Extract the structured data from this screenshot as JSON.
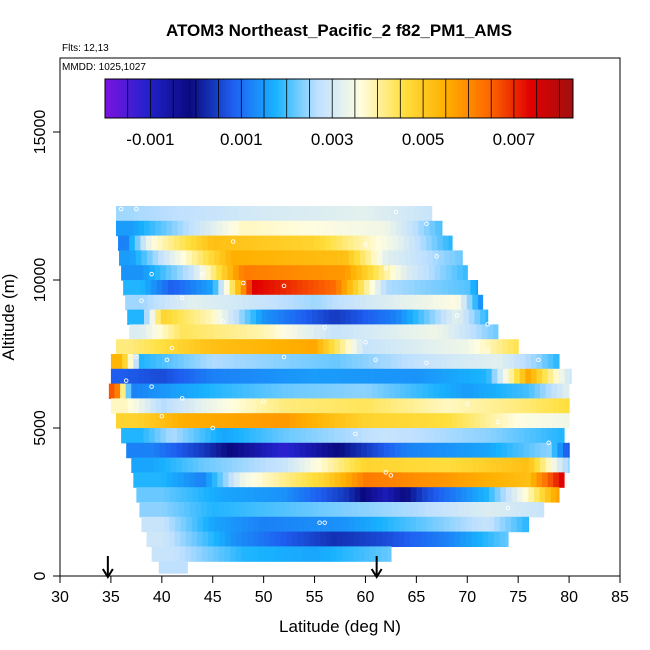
{
  "chart_data": {
    "type": "heatmap",
    "title": "ATOM3 Northeast_Pacific_2 f82_PM1_AMS",
    "flights_label": "Flts: 12,13",
    "dates_label": "MMDD: 1025,1027",
    "xlabel": "Latitude (deg N)",
    "ylabel": "Altitude (m)",
    "xlim": [
      30,
      85
    ],
    "ylim": [
      0,
      17500
    ],
    "xticks": [
      "30",
      "35",
      "40",
      "45",
      "50",
      "55",
      "60",
      "65",
      "70",
      "75",
      "80",
      "85"
    ],
    "yticks": [
      "0",
      "5000",
      "10000",
      "15000"
    ],
    "colorbar": {
      "min": -0.002,
      "max": 0.0083,
      "tick_values": [
        -0.001,
        0.001,
        0.003,
        0.005,
        0.007
      ],
      "tick_labels": [
        "-0.001",
        "0.001",
        "0.003",
        "0.005",
        "0.007"
      ],
      "colors": [
        "#7a14e0",
        "#2222cc",
        "#0a0a80",
        "#1e5ef0",
        "#18b2ff",
        "#bfe0ff",
        "#fffde0",
        "#ffe040",
        "#ffb000",
        "#ff6a00",
        "#e00000",
        "#a01010"
      ]
    },
    "arrows_at_latitude": [
      34.7,
      61.1
    ],
    "bands": [
      {
        "alt": [
          12000,
          12500
        ],
        "lat": [
          35.5,
          66.5
        ],
        "segments": [
          [
            36,
            0.0025
          ],
          [
            50,
            0.003
          ],
          [
            60,
            0.0032
          ],
          [
            66.5,
            0.0028
          ]
        ]
      },
      {
        "alt": [
          11500,
          12000
        ],
        "lat": [
          35.5,
          67.5
        ],
        "segments": [
          [
            37,
            0.0015
          ],
          [
            48,
            0.0038
          ],
          [
            62,
            0.0034
          ],
          [
            67.5,
            0.002
          ]
        ]
      },
      {
        "alt": [
          11000,
          11500
        ],
        "lat": [
          35.7,
          68.5
        ],
        "segments": [
          [
            36.5,
            0.0012
          ],
          [
            39,
            0.0036
          ],
          [
            45,
            0.0052
          ],
          [
            55,
            0.0048
          ],
          [
            63,
            0.0033
          ],
          [
            68.5,
            0.0018
          ]
        ]
      },
      {
        "alt": [
          10500,
          11000
        ],
        "lat": [
          35.8,
          69.5
        ],
        "segments": [
          [
            37,
            0.0015
          ],
          [
            41,
            0.0032
          ],
          [
            47,
            0.0055
          ],
          [
            58,
            0.0052
          ],
          [
            62,
            0.0032
          ],
          [
            69.5,
            0.0022
          ]
        ]
      },
      {
        "alt": [
          10000,
          10500
        ],
        "lat": [
          36,
          70
        ],
        "segments": [
          [
            38,
            0.0014
          ],
          [
            43,
            0.0028
          ],
          [
            48,
            0.0062
          ],
          [
            58,
            0.0058
          ],
          [
            64,
            0.0031
          ],
          [
            70,
            0.0019
          ]
        ]
      },
      {
        "alt": [
          9500,
          10000
        ],
        "lat": [
          36.2,
          71
        ],
        "segments": [
          [
            38,
            0.0018
          ],
          [
            41,
            0.0008
          ],
          [
            45,
            0.0016
          ],
          [
            49,
            0.0074
          ],
          [
            57,
            0.0064
          ],
          [
            62,
            0.0026
          ],
          [
            70,
            0.0021
          ],
          [
            71,
            0.0015
          ]
        ]
      },
      {
        "alt": [
          9000,
          9500
        ],
        "lat": [
          36.4,
          71.5
        ],
        "segments": [
          [
            38,
            0.0025
          ],
          [
            43,
            0.0032
          ],
          [
            55,
            0.0025
          ],
          [
            62,
            0.0031
          ],
          [
            69,
            0.0036
          ],
          [
            71.5,
            0.0012
          ]
        ]
      },
      {
        "alt": [
          8500,
          9000
        ],
        "lat": [
          36.6,
          72
        ],
        "segments": [
          [
            38,
            0.0018
          ],
          [
            40,
            0.0048
          ],
          [
            45,
            0.0038
          ],
          [
            50,
            0.0014
          ],
          [
            57,
            0.0004
          ],
          [
            63,
            0.0012
          ],
          [
            69,
            0.0032
          ],
          [
            72,
            0.0018
          ]
        ]
      },
      {
        "alt": [
          8000,
          8500
        ],
        "lat": [
          36.8,
          73
        ],
        "segments": [
          [
            38,
            0.0031
          ],
          [
            42,
            0.0044
          ],
          [
            50,
            0.0039
          ],
          [
            57,
            0.0028
          ],
          [
            67,
            0.0034
          ],
          [
            73,
            0.0022
          ]
        ]
      },
      {
        "alt": [
          7500,
          8000
        ],
        "lat": [
          35.5,
          75
        ],
        "segments": [
          [
            37,
            0.0042
          ],
          [
            45,
            0.0052
          ],
          [
            55,
            0.0056
          ],
          [
            60,
            0.0028
          ],
          [
            70,
            0.0034
          ],
          [
            75,
            0.0045
          ]
        ]
      },
      {
        "alt": [
          7000,
          7500
        ],
        "lat": [
          35,
          79
        ],
        "segments": [
          [
            36,
            0.0054
          ],
          [
            38,
            0.0018
          ],
          [
            45,
            0.0026
          ],
          [
            57,
            0.0022
          ],
          [
            66,
            0.0028
          ],
          [
            73,
            0.0032
          ],
          [
            77,
            0.0024
          ],
          [
            79,
            0.0018
          ]
        ]
      },
      {
        "alt": [
          6500,
          7000
        ],
        "lat": [
          35,
          80.2
        ],
        "segments": [
          [
            36,
            0.0008
          ],
          [
            40,
            0.0006
          ],
          [
            45,
            0.0012
          ],
          [
            55,
            0.0015
          ],
          [
            65,
            0.0014
          ],
          [
            72,
            0.0018
          ],
          [
            76,
            0.0056
          ],
          [
            78,
            0.0042
          ],
          [
            80.2,
            0.0028
          ]
        ]
      },
      {
        "alt": [
          6000,
          6500
        ],
        "lat": [
          34.8,
          80
        ],
        "segments": [
          [
            35.5,
            0.0066
          ],
          [
            37,
            0.0012
          ],
          [
            45,
            0.0018
          ],
          [
            52,
            0.0022
          ],
          [
            60,
            0.0024
          ],
          [
            70,
            0.0015
          ],
          [
            76,
            0.002
          ],
          [
            80,
            0.0032
          ]
        ]
      },
      {
        "alt": [
          5500,
          6000
        ],
        "lat": [
          35,
          80
        ],
        "segments": [
          [
            36.5,
            0.0038
          ],
          [
            40,
            0.0026
          ],
          [
            45,
            0.0034
          ],
          [
            52,
            0.0042
          ],
          [
            60,
            0.0044
          ],
          [
            68,
            0.0038
          ],
          [
            75,
            0.0042
          ],
          [
            80,
            0.0046
          ]
        ]
      },
      {
        "alt": [
          5000,
          5500
        ],
        "lat": [
          35.5,
          80
        ],
        "segments": [
          [
            37.5,
            0.0048
          ],
          [
            42,
            0.0055
          ],
          [
            52,
            0.0058
          ],
          [
            60,
            0.0048
          ],
          [
            68,
            0.0046
          ],
          [
            75,
            0.0036
          ],
          [
            80,
            0.0034
          ]
        ]
      },
      {
        "alt": [
          4500,
          5000
        ],
        "lat": [
          36,
          79.5
        ],
        "segments": [
          [
            38,
            0.0018
          ],
          [
            41,
            0.0026
          ],
          [
            46,
            0.0016
          ],
          [
            52,
            0.0022
          ],
          [
            62,
            0.0028
          ],
          [
            72,
            0.0024
          ],
          [
            79.5,
            0.0018
          ]
        ]
      },
      {
        "alt": [
          4000,
          4500
        ],
        "lat": [
          36.5,
          80
        ],
        "segments": [
          [
            39,
            0.0012
          ],
          [
            44,
            0.0004
          ],
          [
            48,
            -0.0004
          ],
          [
            52,
            -0.0012
          ],
          [
            57,
            -0.0002
          ],
          [
            64,
            0.0012
          ],
          [
            72,
            0.0016
          ],
          [
            78,
            0.0024
          ],
          [
            80,
            0.0006
          ]
        ]
      },
      {
        "alt": [
          3500,
          4000
        ],
        "lat": [
          37,
          80
        ],
        "segments": [
          [
            39,
            0.0016
          ],
          [
            44,
            0.0022
          ],
          [
            52,
            0.0028
          ],
          [
            60,
            0.0048
          ],
          [
            68,
            0.0046
          ],
          [
            76,
            0.0052
          ],
          [
            80,
            0.0024
          ]
        ]
      },
      {
        "alt": [
          3000,
          3500
        ],
        "lat": [
          37.2,
          79.5
        ],
        "segments": [
          [
            40,
            0.0018
          ],
          [
            44,
            0.0012
          ],
          [
            48,
            0.0034
          ],
          [
            56,
            0.0048
          ],
          [
            60,
            0.0062
          ],
          [
            68,
            0.0058
          ],
          [
            76,
            0.0052
          ],
          [
            79.5,
            0.0075
          ]
        ]
      },
      {
        "alt": [
          2500,
          3000
        ],
        "lat": [
          37.5,
          79
        ],
        "segments": [
          [
            40,
            0.0022
          ],
          [
            46,
            0.0016
          ],
          [
            52,
            0.0014
          ],
          [
            58,
            0.0004
          ],
          [
            62,
            -0.0008
          ],
          [
            66,
            0.0006
          ],
          [
            72,
            0.0018
          ],
          [
            76,
            0.0038
          ],
          [
            79,
            0.0058
          ]
        ]
      },
      {
        "alt": [
          2000,
          2500
        ],
        "lat": [
          37.8,
          77.5
        ],
        "segments": [
          [
            40,
            0.0024
          ],
          [
            45,
            0.0018
          ],
          [
            55,
            0.0022
          ],
          [
            65,
            0.0026
          ],
          [
            72,
            0.0031
          ],
          [
            77.5,
            0.0028
          ]
        ]
      },
      {
        "alt": [
          1500,
          2000
        ],
        "lat": [
          38,
          76
        ],
        "segments": [
          [
            40,
            0.0028
          ],
          [
            45,
            0.0016
          ],
          [
            50,
            0.0012
          ],
          [
            58,
            0.0014
          ],
          [
            66,
            0.0022
          ],
          [
            72,
            0.0028
          ],
          [
            76,
            0.0018
          ]
        ]
      },
      {
        "alt": [
          1000,
          1500
        ],
        "lat": [
          38.5,
          74
        ],
        "segments": [
          [
            40,
            0.0029
          ],
          [
            47,
            0.0014
          ],
          [
            52,
            0.0008
          ],
          [
            57,
            0.0003
          ],
          [
            62,
            0.0006
          ],
          [
            68,
            0.0012
          ],
          [
            74,
            0.0022
          ]
        ]
      },
      {
        "alt": [
          500,
          1000
        ],
        "lat": [
          39,
          62.5
        ],
        "segments": [
          [
            41,
            0.0028
          ],
          [
            48,
            0.0018
          ],
          [
            55,
            0.0016
          ],
          [
            62.5,
            0.0022
          ]
        ]
      },
      {
        "alt": [
          100,
          500
        ],
        "lat": [
          39.7,
          42.5
        ],
        "segments": [
          [
            42.5,
            0.0027
          ]
        ]
      }
    ],
    "flight_points": [
      [
        36,
        12400
      ],
      [
        37.5,
        12400
      ],
      [
        63,
        12300
      ],
      [
        66,
        11900
      ],
      [
        47,
        11300
      ],
      [
        60,
        11200
      ],
      [
        67,
        10800
      ],
      [
        39,
        10200
      ],
      [
        44,
        10200
      ],
      [
        48,
        9900
      ],
      [
        52,
        9800
      ],
      [
        62,
        10400
      ],
      [
        71,
        10200
      ],
      [
        38,
        9300
      ],
      [
        42,
        9400
      ],
      [
        46,
        8600
      ],
      [
        56,
        8400
      ],
      [
        69,
        8800
      ],
      [
        72,
        8500
      ],
      [
        36.2,
        8100
      ],
      [
        41,
        7700
      ],
      [
        60,
        7900
      ],
      [
        72,
        7600
      ],
      [
        37.5,
        7400
      ],
      [
        40.5,
        7300
      ],
      [
        52,
        7400
      ],
      [
        61,
        7300
      ],
      [
        66,
        7200
      ],
      [
        77,
        7300
      ],
      [
        80,
        7300
      ],
      [
        36.5,
        6600
      ],
      [
        39,
        6400
      ],
      [
        42,
        6000
      ],
      [
        50,
        5900
      ],
      [
        70,
        5800
      ],
      [
        40,
        5400
      ],
      [
        45,
        5000
      ],
      [
        59,
        4800
      ],
      [
        73,
        5200
      ],
      [
        62,
        3500
      ],
      [
        62.5,
        3400
      ],
      [
        55.5,
        1800
      ],
      [
        56,
        1800
      ],
      [
        74,
        2300
      ],
      [
        78,
        4500
      ]
    ]
  }
}
